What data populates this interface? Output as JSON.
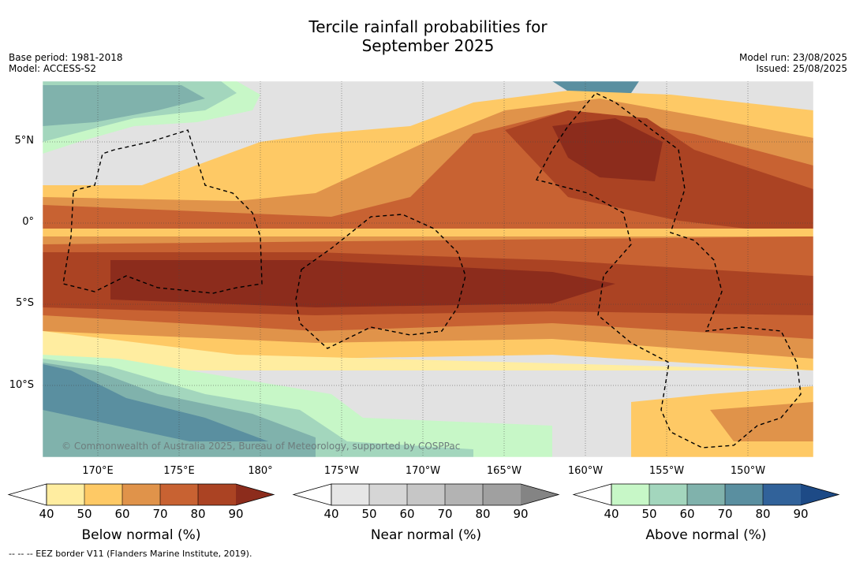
{
  "title_line1": "Tercile rainfall probabilities for",
  "title_line2": "September 2025",
  "base_period": "Base period: 1981-2018",
  "model": "Model: ACCESS-S2",
  "model_run": "Model run: 23/08/2025",
  "issued": "Issued: 25/08/2025",
  "copyright": "© Commonwealth of Australia 2025, Bureau of Meteorology, supported by COSPPac",
  "footer": "--  --  -- EEZ border V11 (Flanders Marine Institute, 2019).",
  "lon_labels": [
    "170°E",
    "175°E",
    "180°",
    "175°W",
    "170°W",
    "165°W",
    "160°W",
    "155°W",
    "150°W"
  ],
  "lat_labels": [
    "5°N",
    "0°",
    "5°S",
    "10°S"
  ],
  "colorbars": [
    {
      "title": "Below normal (%)",
      "ticks": [
        "40",
        "50",
        "60",
        "70",
        "80",
        "90"
      ],
      "colors": [
        "#ffeda0",
        "#fec965",
        "#e0934a",
        "#c86232",
        "#ab4323",
        "#8c2c1c"
      ]
    },
    {
      "title": "Near normal (%)",
      "ticks": [
        "40",
        "50",
        "60",
        "70",
        "80",
        "90"
      ],
      "colors": [
        "#e6e6e6",
        "#d6d6d6",
        "#c6c6c6",
        "#b3b3b3",
        "#a0a0a0",
        "#848484"
      ]
    },
    {
      "title": "Above normal (%)",
      "ticks": [
        "40",
        "50",
        "60",
        "70",
        "80",
        "90"
      ],
      "colors": [
        "#c7f7c7",
        "#a3d6bd",
        "#80b2ac",
        "#5a8fa0",
        "#31629a",
        "#1d4a86"
      ]
    }
  ]
}
